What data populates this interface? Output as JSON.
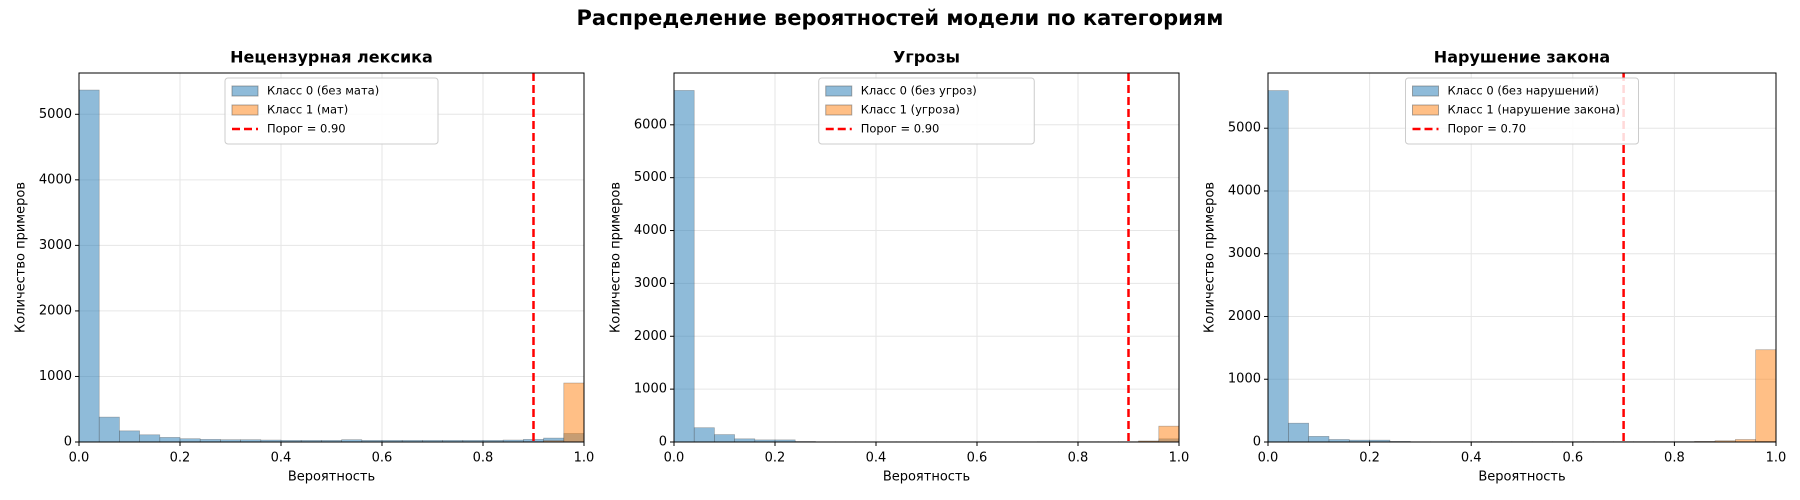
{
  "title": "Распределение вероятностей модели по категориям",
  "chart_data": [
    {
      "type": "histogram",
      "title": "Нецензурная лексика",
      "xlabel": "Вероятность",
      "ylabel": "Количество примеров",
      "bins": [
        0,
        0.04,
        0.08,
        0.12,
        0.16,
        0.2,
        0.24,
        0.28,
        0.32,
        0.36,
        0.4,
        0.44,
        0.48,
        0.52,
        0.56,
        0.6,
        0.64,
        0.68,
        0.72,
        0.76,
        0.8,
        0.84,
        0.88,
        0.92,
        0.96,
        1.0
      ],
      "series": [
        {
          "name": "Класс 0 (без мата)",
          "color": "#1f77b4",
          "values": [
            5370,
            380,
            170,
            110,
            70,
            50,
            40,
            35,
            35,
            30,
            25,
            25,
            25,
            35,
            25,
            25,
            25,
            25,
            25,
            25,
            25,
            30,
            40,
            60,
            130
          ]
        },
        {
          "name": "Класс 1 (мат)",
          "color": "#ff7f0e",
          "values": [
            0,
            0,
            0,
            0,
            0,
            0,
            0,
            0,
            0,
            0,
            0,
            0,
            0,
            0,
            0,
            0,
            0,
            0,
            0,
            0,
            0,
            0,
            5,
            20,
            900
          ]
        }
      ],
      "threshold": {
        "value": 0.9,
        "label": "Порог = 0.90"
      },
      "threshold_color": "#ff0000",
      "xlim": [
        0,
        1
      ],
      "ylim": [
        0,
        5630
      ],
      "xticks": [
        {
          "value": 0,
          "label": "0.0"
        },
        0.2,
        0.4,
        0.6,
        0.8,
        {
          "value": 1,
          "label": "1.0"
        }
      ],
      "yticks": [
        0,
        1000,
        2000,
        3000,
        4000,
        5000
      ],
      "grid": true,
      "legend": "upper center"
    },
    {
      "type": "histogram",
      "title": "Угрозы",
      "xlabel": "Вероятность",
      "ylabel": "Количество примеров",
      "bins": [
        0,
        0.04,
        0.08,
        0.12,
        0.16,
        0.2,
        0.24,
        0.28,
        0.32,
        0.36,
        0.4,
        0.44,
        0.48,
        0.52,
        0.56,
        0.6,
        0.64,
        0.68,
        0.72,
        0.76,
        0.8,
        0.84,
        0.88,
        0.92,
        0.96,
        1.0
      ],
      "series": [
        {
          "name": "Класс 0 (без угроз)",
          "color": "#1f77b4",
          "values": [
            6650,
            270,
            140,
            60,
            40,
            40,
            10,
            5,
            5,
            5,
            5,
            5,
            5,
            5,
            5,
            5,
            5,
            5,
            5,
            5,
            5,
            5,
            5,
            10,
            60
          ]
        },
        {
          "name": "Класс 1 (угроза)",
          "color": "#ff7f0e",
          "values": [
            0,
            0,
            0,
            0,
            0,
            0,
            0,
            0,
            0,
            0,
            0,
            0,
            0,
            0,
            0,
            0,
            0,
            0,
            5,
            5,
            5,
            5,
            5,
            20,
            300
          ]
        }
      ],
      "threshold": {
        "value": 0.9,
        "label": "Порог = 0.90"
      },
      "threshold_color": "#ff0000",
      "xlim": [
        0,
        1
      ],
      "ylim": [
        0,
        6980
      ],
      "xticks": [
        {
          "value": 0,
          "label": "0.0"
        },
        0.2,
        0.4,
        0.6,
        0.8,
        {
          "value": 1,
          "label": "1.0"
        }
      ],
      "yticks": [
        0,
        1000,
        2000,
        3000,
        4000,
        5000,
        6000
      ],
      "grid": true,
      "legend": "upper center"
    },
    {
      "type": "histogram",
      "title": "Нарушение закона",
      "xlabel": "Вероятность",
      "ylabel": "Количество примеров",
      "bins": [
        0,
        0.04,
        0.08,
        0.12,
        0.16,
        0.2,
        0.24,
        0.28,
        0.32,
        0.36,
        0.4,
        0.44,
        0.48,
        0.52,
        0.56,
        0.6,
        0.64,
        0.68,
        0.72,
        0.76,
        0.8,
        0.84,
        0.88,
        0.92,
        0.96,
        1.0
      ],
      "series": [
        {
          "name": "Класс 0 (без нарушений)",
          "color": "#1f77b4",
          "values": [
            5600,
            300,
            90,
            40,
            30,
            30,
            10,
            5,
            5,
            5,
            5,
            5,
            5,
            5,
            5,
            5,
            5,
            5,
            5,
            5,
            5,
            5,
            5,
            5,
            10
          ]
        },
        {
          "name": "Класс 1 (нарушение закона)",
          "color": "#ff7f0e",
          "values": [
            0,
            0,
            0,
            0,
            0,
            0,
            0,
            0,
            0,
            5,
            5,
            5,
            5,
            5,
            5,
            5,
            5,
            5,
            5,
            5,
            5,
            10,
            20,
            40,
            1470
          ]
        }
      ],
      "threshold": {
        "value": 0.7,
        "label": "Порог = 0.70"
      },
      "threshold_color": "#ff0000",
      "xlim": [
        0,
        1
      ],
      "ylim": [
        0,
        5880
      ],
      "xticks": [
        {
          "value": 0,
          "label": "0.0"
        },
        0.2,
        0.4,
        0.6,
        0.8,
        {
          "value": 1,
          "label": "1.0"
        }
      ],
      "yticks": [
        0,
        1000,
        2000,
        3000,
        4000,
        5000
      ],
      "grid": true,
      "legend": "upper center"
    }
  ]
}
